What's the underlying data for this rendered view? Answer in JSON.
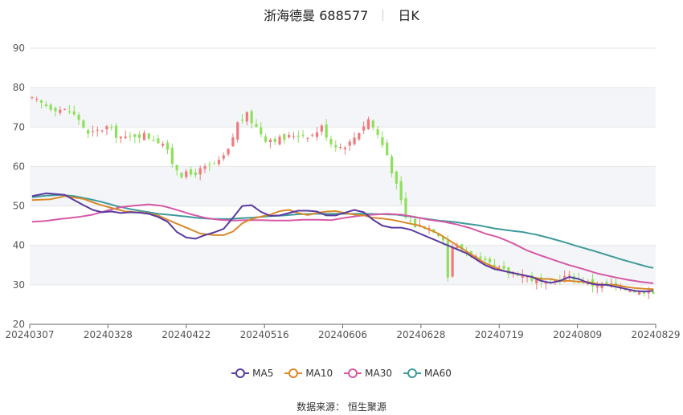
{
  "header": {
    "name": "浙海德曼 688577",
    "period": "日K"
  },
  "footer": {
    "source": "数据来源： 恒生聚源"
  },
  "colors": {
    "up": "#ee7a7d",
    "down": "#8ee05a",
    "grid": "#e6e6e6",
    "band": "#f4f5f8"
  },
  "chart_data": {
    "type": "candlestick",
    "ylim": [
      20,
      90
    ],
    "yticks": [
      20,
      30,
      40,
      50,
      60,
      70,
      80,
      90
    ],
    "xticks": [
      "20240307",
      "20240328",
      "20240422",
      "20240516",
      "20240606",
      "20240628",
      "20240719",
      "20240809",
      "20240829"
    ],
    "legend": [
      {
        "name": "MA5",
        "color": "#5b3aa0"
      },
      {
        "name": "MA10",
        "color": "#d9892a"
      },
      {
        "name": "MA30",
        "color": "#d659a6"
      },
      {
        "name": "MA60",
        "color": "#3f9a9a"
      }
    ],
    "price_points": [
      [
        0,
        77
      ],
      [
        4,
        75
      ],
      [
        8,
        74
      ],
      [
        10,
        72
      ],
      [
        12,
        68
      ],
      [
        14,
        69
      ],
      [
        16,
        70
      ],
      [
        18,
        68
      ],
      [
        20,
        67
      ],
      [
        22,
        68
      ],
      [
        24,
        68
      ],
      [
        26,
        67
      ],
      [
        28,
        66
      ],
      [
        30,
        61
      ],
      [
        32,
        58
      ],
      [
        34,
        58
      ],
      [
        36,
        59
      ],
      [
        38,
        60
      ],
      [
        40,
        61
      ],
      [
        42,
        64
      ],
      [
        44,
        71
      ],
      [
        46,
        73
      ],
      [
        48,
        70
      ],
      [
        50,
        67
      ],
      [
        52,
        67
      ],
      [
        54,
        67
      ],
      [
        56,
        68
      ],
      [
        58,
        68
      ],
      [
        60,
        68
      ],
      [
        62,
        70
      ],
      [
        64,
        66
      ],
      [
        66,
        65
      ],
      [
        68,
        66
      ],
      [
        70,
        69
      ],
      [
        72,
        72
      ],
      [
        74,
        68
      ],
      [
        76,
        63
      ],
      [
        78,
        55
      ],
      [
        80,
        47
      ],
      [
        82,
        45
      ],
      [
        84,
        45
      ],
      [
        86,
        44
      ],
      [
        88,
        42
      ],
      [
        89,
        32
      ],
      [
        90,
        40
      ],
      [
        92,
        39
      ],
      [
        94,
        38
      ],
      [
        96,
        36
      ],
      [
        98,
        35
      ],
      [
        100,
        34
      ],
      [
        102,
        33
      ],
      [
        104,
        33
      ],
      [
        106,
        32
      ],
      [
        108,
        31
      ],
      [
        110,
        30
      ],
      [
        112,
        31
      ],
      [
        114,
        32
      ],
      [
        116,
        32
      ],
      [
        118,
        31
      ],
      [
        120,
        30
      ],
      [
        122,
        30
      ],
      [
        124,
        30
      ],
      [
        126,
        29
      ],
      [
        128,
        29
      ],
      [
        130,
        28
      ],
      [
        132,
        29
      ],
      [
        133,
        28
      ]
    ],
    "ma5_points": [
      [
        0,
        52.5
      ],
      [
        3,
        53.2
      ],
      [
        7,
        52.8
      ],
      [
        9,
        51.5
      ],
      [
        11,
        50.2
      ],
      [
        13,
        49
      ],
      [
        15,
        48.4
      ],
      [
        17,
        48.6
      ],
      [
        19,
        48.2
      ],
      [
        21,
        48.4
      ],
      [
        23,
        48.3
      ],
      [
        25,
        48
      ],
      [
        27,
        47.2
      ],
      [
        29,
        46
      ],
      [
        31,
        43.4
      ],
      [
        33,
        42
      ],
      [
        35,
        41.7
      ],
      [
        37,
        42.6
      ],
      [
        39,
        43.3
      ],
      [
        41,
        44.2
      ],
      [
        43,
        47
      ],
      [
        45,
        50
      ],
      [
        47,
        50.2
      ],
      [
        49,
        48.5
      ],
      [
        51,
        47.5
      ],
      [
        53,
        47.6
      ],
      [
        55,
        48.2
      ],
      [
        57,
        48.8
      ],
      [
        59,
        48.8
      ],
      [
        61,
        48.6
      ],
      [
        63,
        47.6
      ],
      [
        65,
        47.6
      ],
      [
        67,
        48.3
      ],
      [
        69,
        49
      ],
      [
        71,
        48.4
      ],
      [
        73,
        46.5
      ],
      [
        75,
        45
      ],
      [
        77,
        44.5
      ],
      [
        79,
        44.5
      ],
      [
        81,
        44
      ],
      [
        83,
        43
      ],
      [
        85,
        42
      ],
      [
        87,
        41
      ],
      [
        89,
        40
      ],
      [
        91,
        39
      ],
      [
        93,
        38
      ],
      [
        95,
        36.5
      ],
      [
        97,
        35
      ],
      [
        99,
        34
      ],
      [
        101,
        33.5
      ],
      [
        103,
        33
      ],
      [
        105,
        32.5
      ],
      [
        107,
        32
      ],
      [
        109,
        31
      ],
      [
        111,
        30.5
      ],
      [
        113,
        31
      ],
      [
        115,
        32
      ],
      [
        117,
        31.5
      ],
      [
        119,
        30.5
      ],
      [
        121,
        30
      ],
      [
        123,
        30
      ],
      [
        125,
        29.5
      ],
      [
        127,
        29
      ],
      [
        129,
        28.5
      ],
      [
        131,
        28.3
      ],
      [
        133,
        28.5
      ]
    ],
    "ma10_points": [
      [
        0,
        51.5
      ],
      [
        4,
        51.7
      ],
      [
        7,
        52.5
      ],
      [
        11,
        51.8
      ],
      [
        14,
        50.5
      ],
      [
        17,
        49.5
      ],
      [
        20,
        48.6
      ],
      [
        24,
        48.3
      ],
      [
        27,
        47.6
      ],
      [
        30,
        46
      ],
      [
        33,
        44.5
      ],
      [
        36,
        43
      ],
      [
        39,
        42.6
      ],
      [
        41,
        42.6
      ],
      [
        43,
        43.5
      ],
      [
        45,
        45.6
      ],
      [
        47,
        46.7
      ],
      [
        49,
        47.3
      ],
      [
        51,
        47.8
      ],
      [
        53,
        48.7
      ],
      [
        55,
        49
      ],
      [
        57,
        48.2
      ],
      [
        59,
        47.7
      ],
      [
        61,
        48.2
      ],
      [
        63,
        48.6
      ],
      [
        65,
        48.7
      ],
      [
        67,
        48.2
      ],
      [
        69,
        47.8
      ],
      [
        71,
        47.6
      ],
      [
        73,
        47
      ],
      [
        75,
        46.8
      ],
      [
        77,
        46.5
      ],
      [
        79,
        46
      ],
      [
        81,
        45.5
      ],
      [
        83,
        45
      ],
      [
        85,
        44
      ],
      [
        87,
        43
      ],
      [
        89,
        41.5
      ],
      [
        91,
        40
      ],
      [
        93,
        38.5
      ],
      [
        95,
        37
      ],
      [
        97,
        35.5
      ],
      [
        99,
        34.5
      ],
      [
        101,
        33.5
      ],
      [
        103,
        33
      ],
      [
        105,
        32.5
      ],
      [
        107,
        32
      ],
      [
        109,
        31.5
      ],
      [
        111,
        31.5
      ],
      [
        113,
        31
      ],
      [
        115,
        31
      ],
      [
        117,
        30.8
      ],
      [
        119,
        30.7
      ],
      [
        121,
        30.2
      ],
      [
        123,
        30
      ],
      [
        125,
        30
      ],
      [
        127,
        29.5
      ],
      [
        129,
        29.2
      ],
      [
        131,
        29
      ],
      [
        133,
        28.9
      ]
    ],
    "ma30_points": [
      [
        0,
        46
      ],
      [
        3,
        46.2
      ],
      [
        6,
        46.7
      ],
      [
        10,
        47.2
      ],
      [
        13,
        47.8
      ],
      [
        16,
        48.8
      ],
      [
        19,
        49.7
      ],
      [
        22,
        50.1
      ],
      [
        25,
        50.4
      ],
      [
        28,
        50
      ],
      [
        31,
        49
      ],
      [
        34,
        47.9
      ],
      [
        37,
        47
      ],
      [
        40,
        46.5
      ],
      [
        43,
        46.3
      ],
      [
        46,
        46.4
      ],
      [
        49,
        46.4
      ],
      [
        52,
        46.3
      ],
      [
        55,
        46.3
      ],
      [
        58,
        46.5
      ],
      [
        61,
        46.5
      ],
      [
        64,
        46.4
      ],
      [
        67,
        47
      ],
      [
        70,
        47.5
      ],
      [
        73,
        47.8
      ],
      [
        76,
        48
      ],
      [
        79,
        47.8
      ],
      [
        82,
        47.2
      ],
      [
        85,
        46.5
      ],
      [
        88,
        46
      ],
      [
        91,
        45.3
      ],
      [
        94,
        44.3
      ],
      [
        97,
        43
      ],
      [
        100,
        42
      ],
      [
        103,
        40.5
      ],
      [
        106,
        38.7
      ],
      [
        109,
        37.4
      ],
      [
        112,
        36.2
      ],
      [
        115,
        35
      ],
      [
        118,
        34
      ],
      [
        121,
        32.9
      ],
      [
        124,
        32.1
      ],
      [
        127,
        31.4
      ],
      [
        130,
        30.8
      ],
      [
        133,
        30.4
      ]
    ],
    "ma60_points": [
      [
        0,
        52.2
      ],
      [
        3,
        52.6
      ],
      [
        6,
        52.8
      ],
      [
        9,
        52.5
      ],
      [
        12,
        51.8
      ],
      [
        15,
        51
      ],
      [
        18,
        50
      ],
      [
        21,
        49.2
      ],
      [
        24,
        48.6
      ],
      [
        27,
        48
      ],
      [
        30,
        47.7
      ],
      [
        33,
        47.3
      ],
      [
        36,
        46.9
      ],
      [
        39,
        46.7
      ],
      [
        42,
        46.7
      ],
      [
        45,
        46.9
      ],
      [
        48,
        47.1
      ],
      [
        51,
        47.4
      ],
      [
        54,
        47.6
      ],
      [
        57,
        47.9
      ],
      [
        60,
        48
      ],
      [
        63,
        48
      ],
      [
        66,
        48
      ],
      [
        69,
        48
      ],
      [
        72,
        48
      ],
      [
        75,
        47.9
      ],
      [
        78,
        47.8
      ],
      [
        81,
        47.3
      ],
      [
        84,
        46.8
      ],
      [
        87,
        46.3
      ],
      [
        90,
        46
      ],
      [
        93,
        45.5
      ],
      [
        96,
        45
      ],
      [
        99,
        44.3
      ],
      [
        102,
        43.8
      ],
      [
        105,
        43.4
      ],
      [
        108,
        42.7
      ],
      [
        111,
        41.8
      ],
      [
        114,
        40.8
      ],
      [
        117,
        39.7
      ],
      [
        120,
        38.7
      ],
      [
        123,
        37.6
      ],
      [
        126,
        36.5
      ],
      [
        129,
        35.5
      ],
      [
        132,
        34.5
      ],
      [
        133,
        34.3
      ]
    ]
  }
}
